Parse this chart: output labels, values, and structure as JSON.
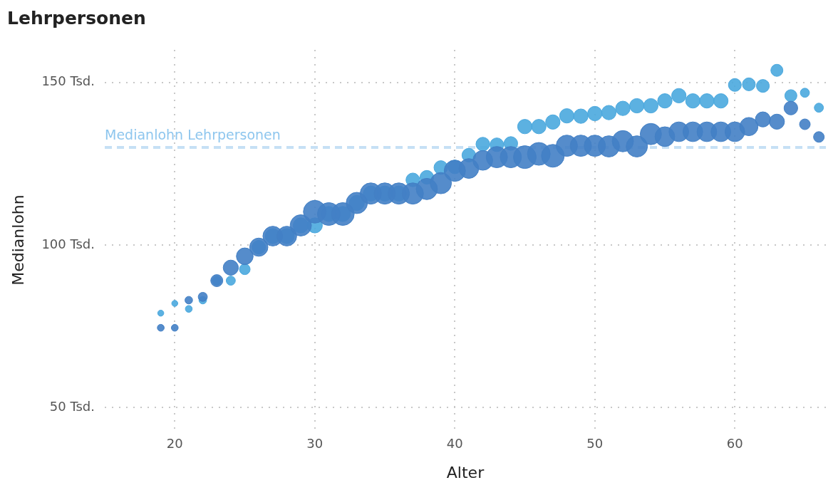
{
  "chart_data": {
    "type": "bubble",
    "title": "Lehrpersonen",
    "xlabel": "Alter",
    "ylabel": "Medianlohn",
    "x": [
      19,
      20,
      21,
      22,
      23,
      24,
      25,
      26,
      27,
      28,
      29,
      30,
      31,
      32,
      33,
      34,
      35,
      36,
      37,
      38,
      39,
      40,
      41,
      42,
      43,
      44,
      45,
      46,
      47,
      48,
      49,
      50,
      51,
      52,
      53,
      54,
      55,
      56,
      57,
      58,
      59,
      60,
      61,
      62,
      63,
      64,
      65,
      66
    ],
    "series": [
      {
        "color": "#4380c5",
        "values": [
          74.5,
          74.5,
          83,
          84,
          89,
          93,
          96.5,
          99.3,
          102.7,
          102.7,
          106,
          110.2,
          109.5,
          109.5,
          112.9,
          115.8,
          115.8,
          115.8,
          115.8,
          117.2,
          119,
          122.8,
          123.5,
          126,
          127,
          127,
          127,
          128,
          127.4,
          130.5,
          130.5,
          130.5,
          130.3,
          131.9,
          130.3,
          134.1,
          133.3,
          134.8,
          134.8,
          134.8,
          134.8,
          134.8,
          136.4,
          138.6,
          137.9,
          142.1,
          137.1,
          133.2
        ],
        "sizes": [
          0.09,
          0.09,
          0.11,
          0.16,
          0.28,
          0.44,
          0.54,
          0.64,
          0.75,
          0.75,
          0.87,
          1,
          1,
          1,
          0.87,
          0.87,
          0.87,
          0.87,
          0.87,
          0.87,
          0.87,
          0.87,
          0.75,
          0.75,
          0.87,
          0.87,
          1,
          1,
          1,
          0.87,
          0.87,
          0.87,
          0.87,
          0.87,
          0.87,
          0.87,
          0.75,
          0.75,
          0.75,
          0.75,
          0.75,
          0.75,
          0.64,
          0.44,
          0.44,
          0.36,
          0.22,
          0.22
        ]
      },
      {
        "color": "#4aa8de",
        "values": [
          79,
          82,
          80.3,
          83,
          89,
          89,
          92.5,
          99.3,
          102.7,
          102.7,
          106,
          106,
          109.5,
          109.5,
          112.9,
          115.8,
          115.8,
          115.8,
          120,
          120.8,
          123.8,
          124,
          127.6,
          131,
          130.8,
          131.2,
          136.4,
          136.4,
          137.8,
          139.7,
          139.6,
          140.4,
          140.7,
          142,
          142.8,
          142.8,
          144.3,
          145.9,
          144.3,
          144.3,
          144.3,
          149.2,
          149.4,
          148.9,
          153.7,
          145.9,
          146.8,
          142.2
        ],
        "sizes": [
          0.07,
          0.07,
          0.09,
          0.11,
          0.16,
          0.16,
          0.22,
          0.36,
          0.44,
          0.44,
          0.44,
          0.44,
          0.44,
          0.44,
          0.44,
          0.44,
          0.44,
          0.44,
          0.36,
          0.36,
          0.36,
          0.36,
          0.36,
          0.36,
          0.36,
          0.36,
          0.4,
          0.4,
          0.4,
          0.4,
          0.4,
          0.4,
          0.4,
          0.4,
          0.4,
          0.4,
          0.4,
          0.4,
          0.4,
          0.4,
          0.4,
          0.32,
          0.32,
          0.32,
          0.28,
          0.28,
          0.16,
          0.16
        ]
      }
    ],
    "xlim": [
      15,
      66.5
    ],
    "xticks": [
      20,
      30,
      40,
      50,
      60
    ],
    "ylim": [
      43,
      160
    ],
    "yticks": [
      {
        "value": 50,
        "label": "50 Tsd."
      },
      {
        "value": 100,
        "label": "100 Tsd."
      },
      {
        "value": 150,
        "label": "150 Tsd."
      }
    ],
    "ref_lines": [
      {
        "axis": "y",
        "value": 130,
        "label": "Medianlohn Lehrpersonen",
        "color": "#c6e0f5",
        "line_style": "dashed"
      }
    ],
    "grid": true,
    "legend": false
  }
}
